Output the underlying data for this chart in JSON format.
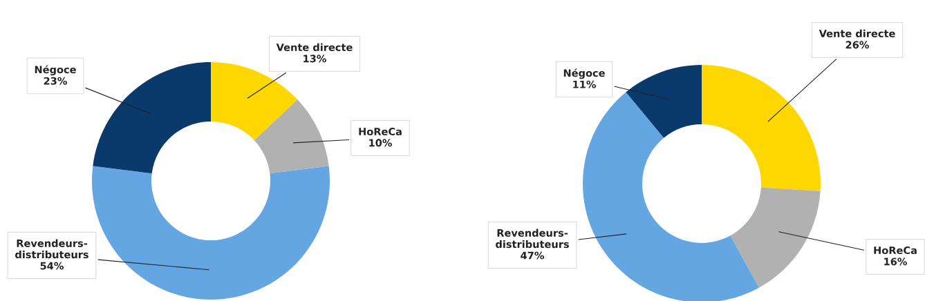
{
  "chart_data": [
    {
      "type": "donut",
      "categories": [
        "Vente directe",
        "HoReCa",
        "Revendeurs-\ndistributeurs",
        "Négoce"
      ],
      "values": [
        13,
        10,
        54,
        23
      ],
      "value_labels": [
        "13%",
        "10%",
        "54%",
        "23%"
      ],
      "colors": [
        "#ffd700",
        "#b1b1b1",
        "#64a6e1",
        "#0a3a6c"
      ],
      "legend": false
    },
    {
      "type": "donut",
      "categories": [
        "Vente directe",
        "HoReCa",
        "Revendeurs-\ndistributeurs",
        "Négoce"
      ],
      "values": [
        26,
        16,
        47,
        11
      ],
      "value_labels": [
        "26%",
        "16%",
        "47%",
        "11%"
      ],
      "colors": [
        "#ffd700",
        "#b1b1b1",
        "#64a6e1",
        "#0a3a6c"
      ],
      "legend": false
    }
  ]
}
